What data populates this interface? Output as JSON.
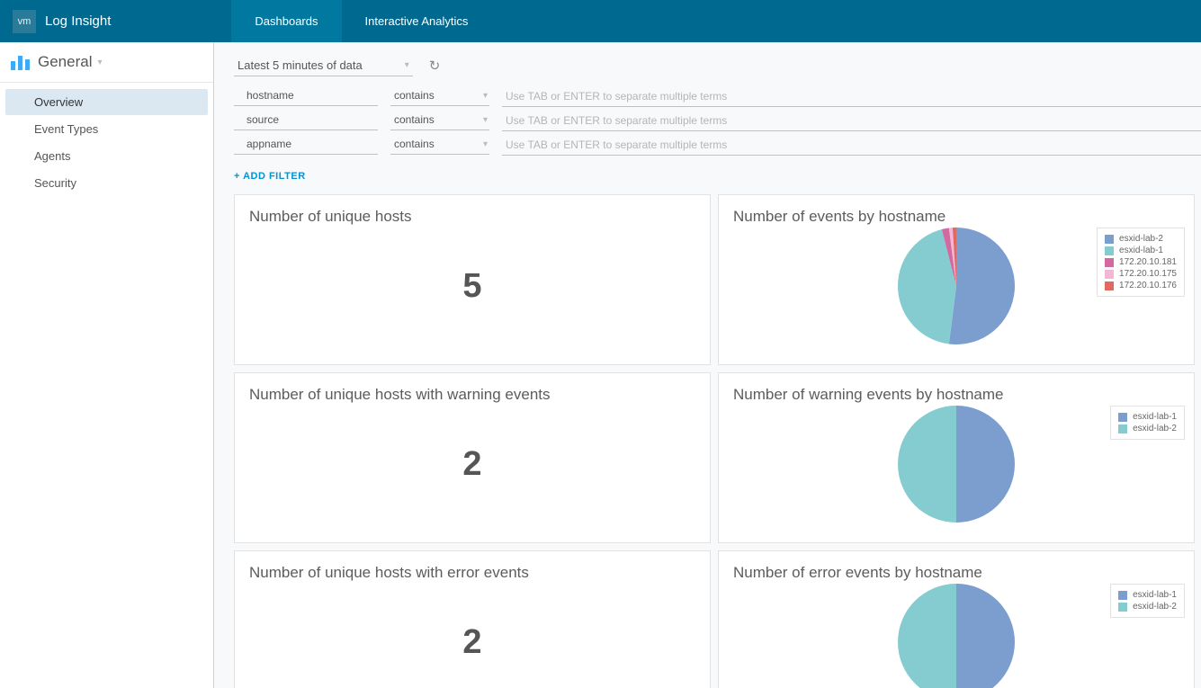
{
  "brand": {
    "logo_text": "vm",
    "title": "Log Insight"
  },
  "topnav": {
    "items": [
      {
        "label": "Dashboards",
        "active": true
      },
      {
        "label": "Interactive Analytics",
        "active": false
      }
    ]
  },
  "sidebar": {
    "header": "General",
    "items": [
      {
        "label": "Overview",
        "active": true
      },
      {
        "label": "Event Types",
        "active": false
      },
      {
        "label": "Agents",
        "active": false
      },
      {
        "label": "Security",
        "active": false
      }
    ]
  },
  "timebar": {
    "range_label": "Latest 5 minutes of data"
  },
  "filters": {
    "rows": [
      {
        "field": "hostname",
        "operator": "contains",
        "placeholder": "Use TAB or ENTER to separate multiple terms"
      },
      {
        "field": "source",
        "operator": "contains",
        "placeholder": "Use TAB or ENTER to separate multiple terms"
      },
      {
        "field": "appname",
        "operator": "contains",
        "placeholder": "Use TAB or ENTER to separate multiple terms"
      }
    ],
    "add_label": "+ ADD FILTER"
  },
  "colors": {
    "blue": "#7b9ecf",
    "teal": "#85ccd0",
    "magenta": "#d26aa1",
    "pink": "#f1b7d5",
    "red": "#e06a5f"
  },
  "cards": [
    {
      "title": "Number of unique hosts",
      "type": "number",
      "value": "5"
    },
    {
      "title": "Number of events by hostname",
      "type": "pie",
      "radius": 65,
      "slices": [
        {
          "key": "esxid-lab-2",
          "value": 52,
          "color": "#7b9ecf"
        },
        {
          "key": "esxid-lab-1",
          "value": 44,
          "color": "#85ccd0"
        },
        {
          "key": "172.20.10.181",
          "value": 2,
          "color": "#d26aa1"
        },
        {
          "key": "172.20.10.175",
          "value": 1,
          "color": "#f1b7d5"
        },
        {
          "key": "172.20.10.176",
          "value": 1,
          "color": "#e06a5f"
        }
      ],
      "legend": [
        "esxid-lab-2",
        "esxid-lab-1",
        "172.20.10.181",
        "172.20.10.175",
        "172.20.10.176"
      ],
      "legend_colors": [
        "#7b9ecf",
        "#85ccd0",
        "#d26aa1",
        "#f1b7d5",
        "#e06a5f"
      ]
    },
    {
      "title": "Number of unique hosts with warning events",
      "type": "number",
      "value": "2"
    },
    {
      "title": "Number of warning events by hostname",
      "type": "pie",
      "radius": 65,
      "slices": [
        {
          "key": "esxid-lab-1",
          "value": 50,
          "color": "#7b9ecf"
        },
        {
          "key": "esxid-lab-2",
          "value": 50,
          "color": "#85ccd0"
        }
      ],
      "legend": [
        "esxid-lab-1",
        "esxid-lab-2"
      ],
      "legend_colors": [
        "#7b9ecf",
        "#85ccd0"
      ]
    },
    {
      "title": "Number of unique hosts with error events",
      "type": "number",
      "value": "2"
    },
    {
      "title": "Number of error events by hostname",
      "type": "pie",
      "radius": 65,
      "slices": [
        {
          "key": "esxid-lab-1",
          "value": 50,
          "color": "#7b9ecf"
        },
        {
          "key": "esxid-lab-2",
          "value": 50,
          "color": "#85ccd0"
        }
      ],
      "legend": [
        "esxid-lab-1",
        "esxid-lab-2"
      ],
      "legend_colors": [
        "#7b9ecf",
        "#85ccd0"
      ]
    }
  ]
}
